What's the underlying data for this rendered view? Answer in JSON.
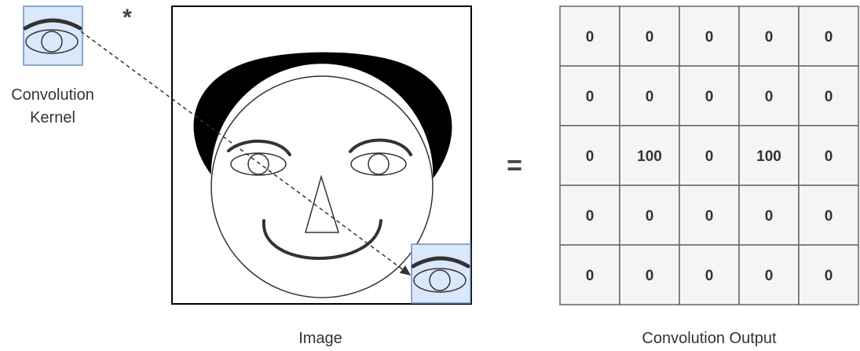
{
  "labels": {
    "kernel_line1": "Convolution",
    "kernel_line2": "Kernel",
    "image": "Image",
    "output": "Convolution Output"
  },
  "operators": {
    "convolve": "*",
    "equals": "="
  },
  "output_grid": [
    [
      "0",
      "0",
      "0",
      "0",
      "0"
    ],
    [
      "0",
      "0",
      "0",
      "0",
      "0"
    ],
    [
      "0",
      "100",
      "0",
      "100",
      "0"
    ],
    [
      "0",
      "0",
      "0",
      "0",
      "0"
    ],
    [
      "0",
      "0",
      "0",
      "0",
      "0"
    ]
  ],
  "colors": {
    "kernel_fill": "#dae8fc",
    "kernel_stroke": "#6c8ebf",
    "grid_fill": "#f5f5f5",
    "grid_stroke": "#666666",
    "hair": "#000000",
    "stroke": "#333333"
  },
  "icons": {
    "kernel": "eye-icon",
    "arrow": "dashed-arrow"
  }
}
